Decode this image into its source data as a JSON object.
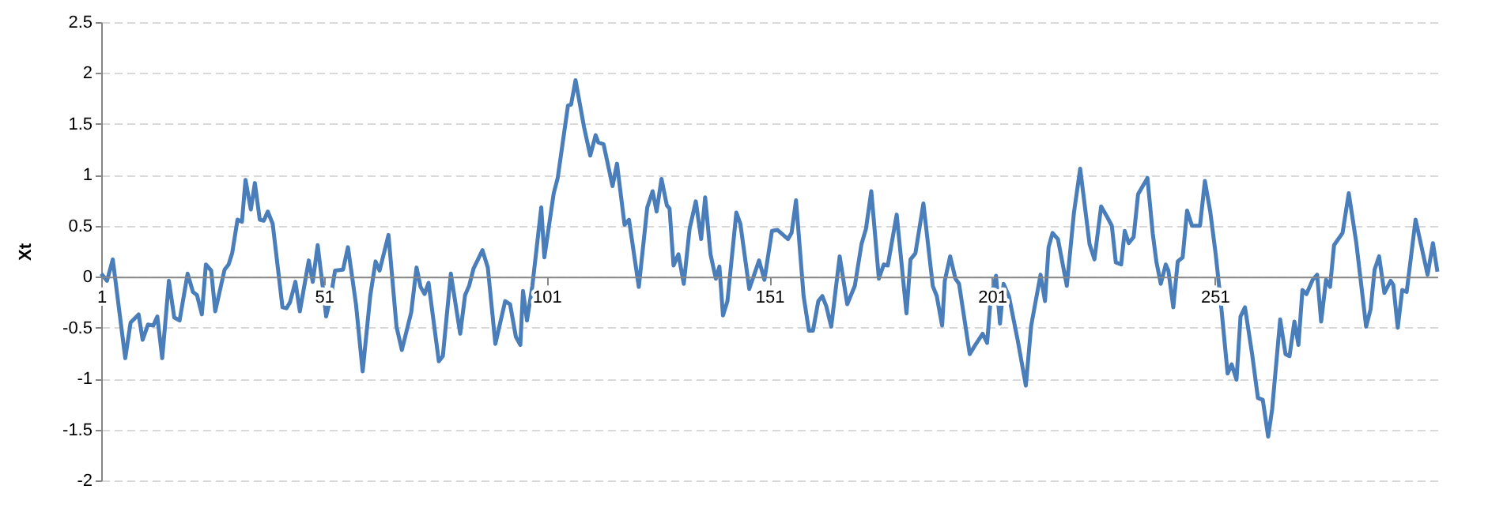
{
  "chart_data": {
    "type": "line",
    "ylabel": "Xt",
    "x": [
      1,
      2.3,
      3.6,
      6.4,
      7.6,
      9.4,
      10.3,
      11.5,
      12.7,
      13.6,
      14.7,
      16.2,
      17.4,
      18.6,
      20.4,
      21.6,
      22.5,
      23.6,
      24.5,
      25.7,
      26.6,
      28.7,
      29.6,
      30.4,
      31.6,
      32.6,
      33.4,
      34.6,
      35.5,
      36.6,
      37.5,
      38.4,
      39.5,
      41.7,
      42.6,
      43.4,
      44.6,
      45.6,
      47.6,
      48.5,
      49.6,
      50.8,
      51.5,
      52.5,
      53.5,
      55.3,
      56.4,
      58.2,
      59.7,
      61.4,
      62.6,
      63.5,
      65.5,
      67.3,
      68.5,
      70.6,
      71.8,
      72.7,
      73.6,
      74.5,
      76.8,
      77.7,
      79.5,
      81.6,
      82.7,
      83.6,
      84.6,
      86.6,
      87.8,
      89.5,
      91.7,
      92.8,
      94.1,
      95.1,
      95.7,
      96.6,
      97.8,
      99.8,
      100.5,
      102.6,
      103.5,
      105.8,
      106.5,
      107.5,
      109.4,
      110.8,
      112,
      112.6,
      113.8,
      115.8,
      116.8,
      118.5,
      119.5,
      121.7,
      123.6,
      124.8,
      125.7,
      126.8,
      128,
      128.6,
      129.5,
      130.6,
      131.8,
      133.1,
      134.5,
      135.7,
      136.6,
      137.8,
      139,
      139.8,
      140.6,
      141.6,
      143.6,
      144.5,
      146.5,
      148.7,
      149.9,
      151.6,
      152.8,
      155.2,
      156,
      157,
      158.7,
      159.9,
      160.8,
      162,
      162.9,
      163.8,
      164.9,
      166.8,
      168.5,
      170.2,
      171.7,
      172.7,
      173.9,
      175.6,
      176.7,
      177.6,
      179.6,
      181.8,
      182.7,
      183.8,
      185.6,
      187.7,
      188.6,
      189.8,
      190.4,
      191.6,
      192.8,
      193.6,
      196,
      197.1,
      198.9,
      199.9,
      200.7,
      201.9,
      202.8,
      203.6,
      204.8,
      206.8,
      208.6,
      209.8,
      211.9,
      212.9,
      213.7,
      214.6,
      215.8,
      217.8,
      219.4,
      220.8,
      222.9,
      224,
      225.5,
      226.7,
      227.9,
      228.8,
      230,
      230.8,
      231.7,
      232.8,
      233.8,
      235.9,
      237.1,
      237.9,
      238.9,
      240,
      240.6,
      241.7,
      242.7,
      243.8,
      244.8,
      245.9,
      247.7,
      248.8,
      250,
      251.2,
      252.3,
      253.9,
      254.8,
      255.9,
      256.8,
      257.8,
      259.4,
      260.7,
      261.8,
      263,
      263.9,
      265.7,
      266.9,
      267.8,
      268.9,
      269.8,
      270.7,
      271.6,
      273,
      274,
      274.9,
      276,
      276.9,
      277.8,
      279.7,
      281.1,
      282.8,
      285,
      286,
      286.9,
      287.9,
      289.1,
      290.5,
      291.1,
      292.1,
      293.1,
      294.1,
      296.1,
      297,
      298.8,
      300,
      301
    ],
    "series": [
      {
        "color": "#4a7ebb",
        "values": [
          0.03,
          -0.04,
          0.17,
          -0.8,
          -0.45,
          -0.37,
          -0.62,
          -0.47,
          -0.48,
          -0.39,
          -0.8,
          -0.04,
          -0.4,
          -0.43,
          0.03,
          -0.15,
          -0.18,
          -0.37,
          0.12,
          0.06,
          -0.34,
          0.07,
          0.12,
          0.23,
          0.56,
          0.54,
          0.95,
          0.66,
          0.92,
          0.56,
          0.55,
          0.64,
          0.52,
          -0.3,
          -0.31,
          -0.25,
          -0.05,
          -0.34,
          0.16,
          -0.05,
          0.31,
          -0.12,
          -0.39,
          -0.21,
          0.06,
          0.07,
          0.29,
          -0.27,
          -0.93,
          -0.19,
          0.15,
          0.06,
          0.41,
          -0.49,
          -0.72,
          -0.35,
          0.09,
          -0.1,
          -0.17,
          -0.06,
          -0.83,
          -0.78,
          0.03,
          -0.56,
          -0.18,
          -0.09,
          0.08,
          0.26,
          0.09,
          -0.66,
          -0.24,
          -0.27,
          -0.59,
          -0.67,
          -0.14,
          -0.43,
          -0.09,
          0.68,
          0.19,
          0.82,
          0.97,
          1.68,
          1.69,
          1.93,
          1.47,
          1.19,
          1.39,
          1.32,
          1.3,
          0.89,
          1.11,
          0.51,
          0.56,
          -0.1,
          0.68,
          0.84,
          0.64,
          0.96,
          0.7,
          0.67,
          0.11,
          0.22,
          -0.07,
          0.47,
          0.74,
          0.37,
          0.78,
          0.22,
          -0.02,
          0.1,
          -0.38,
          -0.24,
          0.63,
          0.52,
          -0.12,
          0.16,
          -0.03,
          0.45,
          0.46,
          0.37,
          0.43,
          0.75,
          -0.19,
          -0.53,
          -0.53,
          -0.24,
          -0.19,
          -0.29,
          -0.49,
          0.2,
          -0.27,
          -0.09,
          0.32,
          0.47,
          0.84,
          -0.02,
          0.12,
          0.11,
          0.61,
          -0.36,
          0.17,
          0.23,
          0.72,
          -0.09,
          -0.19,
          -0.48,
          -0.04,
          0.2,
          -0.02,
          -0.07,
          -0.76,
          -0.68,
          -0.56,
          -0.65,
          -0.22,
          0.01,
          -0.46,
          -0.07,
          -0.19,
          -0.63,
          -1.07,
          -0.48,
          0.02,
          -0.24,
          0.29,
          0.43,
          0.37,
          -0.09,
          0.63,
          1.06,
          0.32,
          0.17,
          0.69,
          0.6,
          0.5,
          0.14,
          0.12,
          0.45,
          0.33,
          0.39,
          0.81,
          0.97,
          0.42,
          0.15,
          -0.07,
          0.12,
          0.06,
          -0.3,
          0.15,
          0.19,
          0.65,
          0.5,
          0.5,
          0.94,
          0.64,
          0.23,
          -0.22,
          -0.95,
          -0.86,
          -1.01,
          -0.39,
          -0.3,
          -0.76,
          -1.19,
          -1.21,
          -1.57,
          -1.3,
          -0.42,
          -0.76,
          -0.78,
          -0.44,
          -0.67,
          -0.13,
          -0.17,
          -0.03,
          0.02,
          -0.44,
          -0.03,
          -0.1,
          0.31,
          0.43,
          0.82,
          0.33,
          -0.49,
          -0.32,
          0.07,
          0.2,
          -0.16,
          -0.04,
          -0.08,
          -0.5,
          -0.13,
          -0.15,
          0.56,
          0.38,
          0.02,
          0.33,
          0.05
        ]
      }
    ],
    "xlim": [
      1,
      301
    ],
    "xticks": [
      1,
      51,
      101,
      151,
      201,
      251
    ],
    "ylim": [
      -2,
      2.5
    ],
    "yticks": [
      -2,
      -1.5,
      -1,
      -0.5,
      0,
      0.5,
      1,
      1.5,
      2,
      2.5
    ],
    "grid": "y",
    "line_style": "solid"
  }
}
